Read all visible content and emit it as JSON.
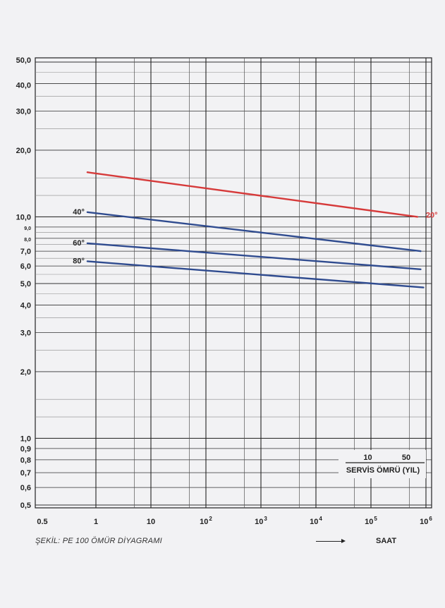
{
  "chart_data": {
    "type": "line",
    "caption": "ŞEKİL: PE 100 ÖMÜR DİYAGRAMI",
    "x_unit_label": "SAAT",
    "x_scale": "log",
    "y_scale": "log",
    "xlim": [
      0.5,
      1000000
    ],
    "ylim": [
      0.5,
      50
    ],
    "grid": true,
    "x_ticks": [
      {
        "value": 0.5,
        "base": "0.5",
        "exp": ""
      },
      {
        "value": 1,
        "base": "1",
        "exp": ""
      },
      {
        "value": 10,
        "base": "10",
        "exp": ""
      },
      {
        "value": 100,
        "base": "10",
        "exp": "2"
      },
      {
        "value": 1000,
        "base": "10",
        "exp": "3"
      },
      {
        "value": 10000,
        "base": "10",
        "exp": "4"
      },
      {
        "value": 100000,
        "base": "10",
        "exp": "5"
      },
      {
        "value": 1000000,
        "base": "10",
        "exp": "6"
      }
    ],
    "y_ticks": [
      {
        "value": 50,
        "label": "50,0"
      },
      {
        "value": 40,
        "label": "40,0"
      },
      {
        "value": 30,
        "label": "30,0"
      },
      {
        "value": 20,
        "label": "20,0"
      },
      {
        "value": 10,
        "label": "10,0"
      },
      {
        "value": 9,
        "label": "9,0"
      },
      {
        "value": 8,
        "label": "8,0"
      },
      {
        "value": 7,
        "label": "7,0"
      },
      {
        "value": 6,
        "label": "6,0"
      },
      {
        "value": 5,
        "label": "5,0"
      },
      {
        "value": 4,
        "label": "4,0"
      },
      {
        "value": 3,
        "label": "3,0"
      },
      {
        "value": 2,
        "label": "2,0"
      },
      {
        "value": 1,
        "label": "1,0"
      },
      {
        "value": 0.9,
        "label": "0,9"
      },
      {
        "value": 0.8,
        "label": "0,8"
      },
      {
        "value": 0.7,
        "label": "0,7"
      },
      {
        "value": 0.6,
        "label": "0,6"
      },
      {
        "value": 0.5,
        "label": "0,5"
      }
    ],
    "series": [
      {
        "name": "20°",
        "color": "#d63a3a",
        "label_position": "end",
        "x": [
          0.7,
          700000
        ],
        "y": [
          15.9,
          10.0
        ]
      },
      {
        "name": "40°",
        "color": "#2f4b8f",
        "label_position": "start",
        "x": [
          0.7,
          800000
        ],
        "y": [
          10.5,
          7.0
        ]
      },
      {
        "name": "60°",
        "color": "#2f4b8f",
        "label_position": "start",
        "x": [
          0.7,
          800000
        ],
        "y": [
          7.6,
          5.8
        ]
      },
      {
        "name": "80°",
        "color": "#2f4b8f",
        "label_position": "start",
        "x": [
          0.7,
          900000
        ],
        "y": [
          6.3,
          4.8
        ]
      }
    ],
    "service_life_scale": {
      "label": "SERVİS ÖMRÜ (YIL)",
      "ticks": [
        {
          "label": "10",
          "hours": 87600
        },
        {
          "label": "50",
          "hours": 438000
        }
      ]
    }
  }
}
